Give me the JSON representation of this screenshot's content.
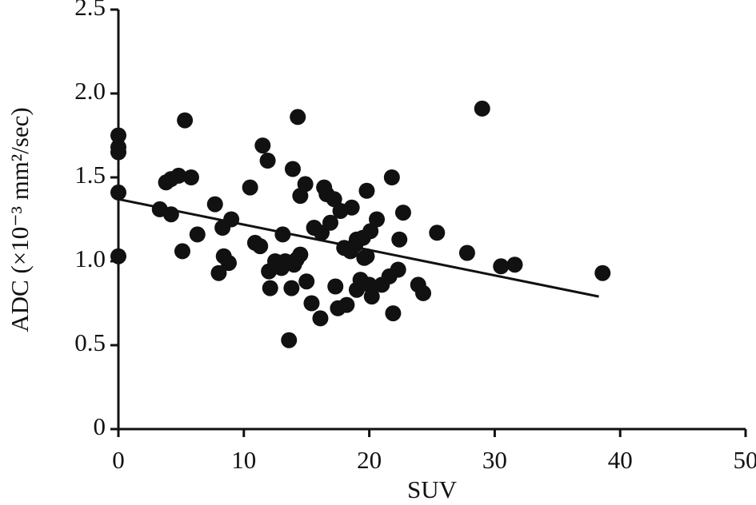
{
  "chart_data": {
    "type": "scatter",
    "x_label": "SUV",
    "y_label": "ADC (×10⁻³ mm²/sec)",
    "xlim": [
      0,
      50
    ],
    "ylim": [
      0,
      2.5
    ],
    "xticks": [
      0,
      10,
      20,
      30,
      40,
      50
    ],
    "yticks": [
      0,
      0.5,
      {
        "value": 1,
        "label": "1.0"
      },
      1.5,
      {
        "value": 2,
        "label": "2.0"
      },
      2.5
    ],
    "color": "#111111",
    "x": [
      0,
      0,
      0,
      0,
      0,
      5.3,
      14.3,
      29.0,
      3.3,
      3.8,
      4.2,
      4.2,
      4.8,
      5.8,
      5.1,
      6.3,
      7.7,
      8.0,
      8.3,
      8.4,
      8.8,
      9.0,
      10.5,
      10.9,
      11.3,
      11.5,
      11.9,
      12.0,
      12.1,
      12.5,
      13.1,
      13.3,
      13.6,
      13.8,
      13.9,
      14.0,
      14.5,
      14.5,
      14.9,
      15.0,
      15.4,
      15.6,
      16.1,
      16.2,
      16.4,
      16.9,
      16.6,
      17.2,
      17.3,
      17.5,
      17.7,
      18.0,
      18.2,
      18.6,
      18.9,
      19.0,
      19.3,
      19.5,
      19.8,
      19.8,
      20.0,
      20.2,
      20.6,
      21.0,
      21.6,
      21.8,
      21.9,
      22.3,
      22.4,
      22.7,
      23.9,
      24.3,
      25.4,
      27.8,
      30.5,
      31.6,
      38.6,
      19.0,
      18.5,
      20.1,
      19.6,
      13.0,
      14.2
    ],
    "y": [
      1.75,
      1.68,
      1.65,
      1.41,
      1.03,
      1.84,
      1.86,
      1.91,
      1.31,
      1.47,
      1.49,
      1.28,
      1.51,
      1.5,
      1.06,
      1.16,
      1.34,
      0.93,
      1.2,
      1.03,
      0.99,
      1.25,
      1.44,
      1.11,
      1.09,
      1.69,
      1.6,
      0.94,
      0.84,
      1.0,
      1.16,
      1.0,
      0.53,
      0.84,
      1.55,
      0.98,
      1.04,
      1.39,
      1.46,
      0.88,
      0.75,
      1.2,
      0.66,
      1.17,
      1.44,
      1.23,
      1.4,
      1.37,
      0.85,
      0.72,
      1.3,
      1.08,
      0.74,
      1.32,
      1.1,
      0.83,
      0.89,
      1.14,
      1.03,
      1.42,
      0.86,
      0.79,
      1.25,
      0.86,
      0.91,
      1.5,
      0.69,
      0.95,
      1.13,
      1.29,
      0.86,
      0.81,
      1.17,
      1.05,
      0.97,
      0.98,
      0.93,
      1.13,
      1.06,
      1.18,
      1.02,
      0.96,
      1.01
    ],
    "trend_line": {
      "x": [
        0,
        38.3
      ],
      "y": [
        1.37,
        0.79
      ]
    }
  }
}
